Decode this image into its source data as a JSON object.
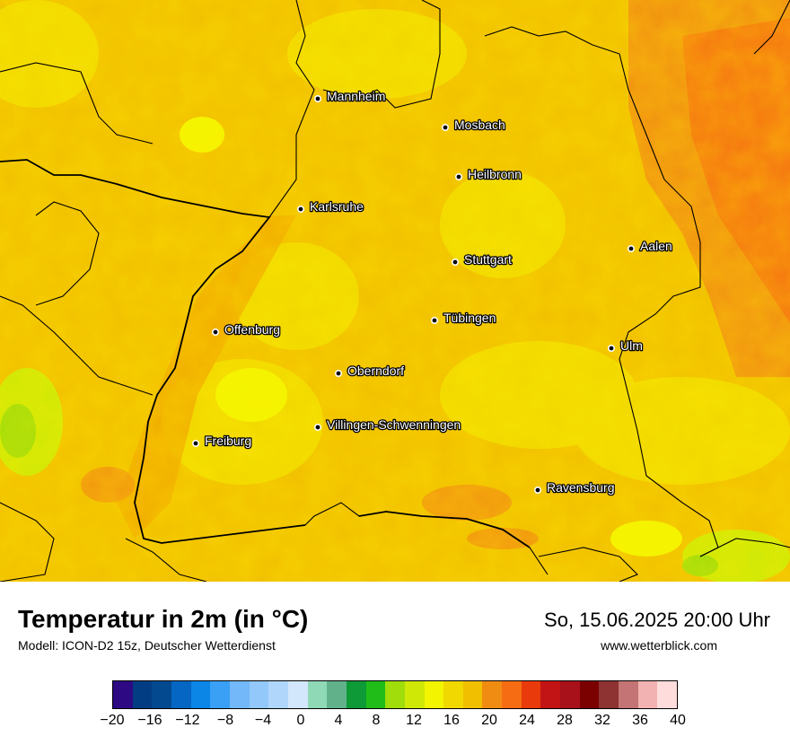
{
  "title": "Temperatur in 2m (in °C)",
  "model": "Modell: ICON-D2 15z, Deutscher Wetterdienst",
  "datetime": "So, 15.06.2025 20:00 Uhr",
  "website": "www.wetterblick.com",
  "cities": [
    {
      "name": "Mannheim"
    },
    {
      "name": "Mosbach"
    },
    {
      "name": "Heilbronn"
    },
    {
      "name": "Karlsruhe"
    },
    {
      "name": "Aalen"
    },
    {
      "name": "Stuttgart"
    },
    {
      "name": "Tübingen"
    },
    {
      "name": "Offenburg"
    },
    {
      "name": "Ulm"
    },
    {
      "name": "Oberndorf"
    },
    {
      "name": "Villingen-Schwenningen"
    },
    {
      "name": "Freiburg"
    },
    {
      "name": "Ravensburg"
    }
  ],
  "colorbar": {
    "colors": [
      "#2d0a84",
      "#023d84",
      "#034990",
      "#0566c4",
      "#0b85e6",
      "#3aa0f5",
      "#73b8f8",
      "#92c8fa",
      "#b0d6fb",
      "#d2e6fc",
      "#8fd9b7",
      "#61b28a",
      "#0d9a37",
      "#20bd18",
      "#a1dc0b",
      "#cfe806",
      "#f3f400",
      "#f1d800",
      "#f1bf00",
      "#f18c13",
      "#f56c12",
      "#e83a0a",
      "#c21414",
      "#a8101a",
      "#7b0000",
      "#8f3232",
      "#c47474",
      "#f2b2b2",
      "#ffdcdc"
    ],
    "ticks": [
      "−20",
      "−16",
      "−12",
      "−8",
      "−4",
      "0",
      "4",
      "8",
      "12",
      "16",
      "20",
      "24",
      "28",
      "32",
      "36",
      "40"
    ]
  }
}
